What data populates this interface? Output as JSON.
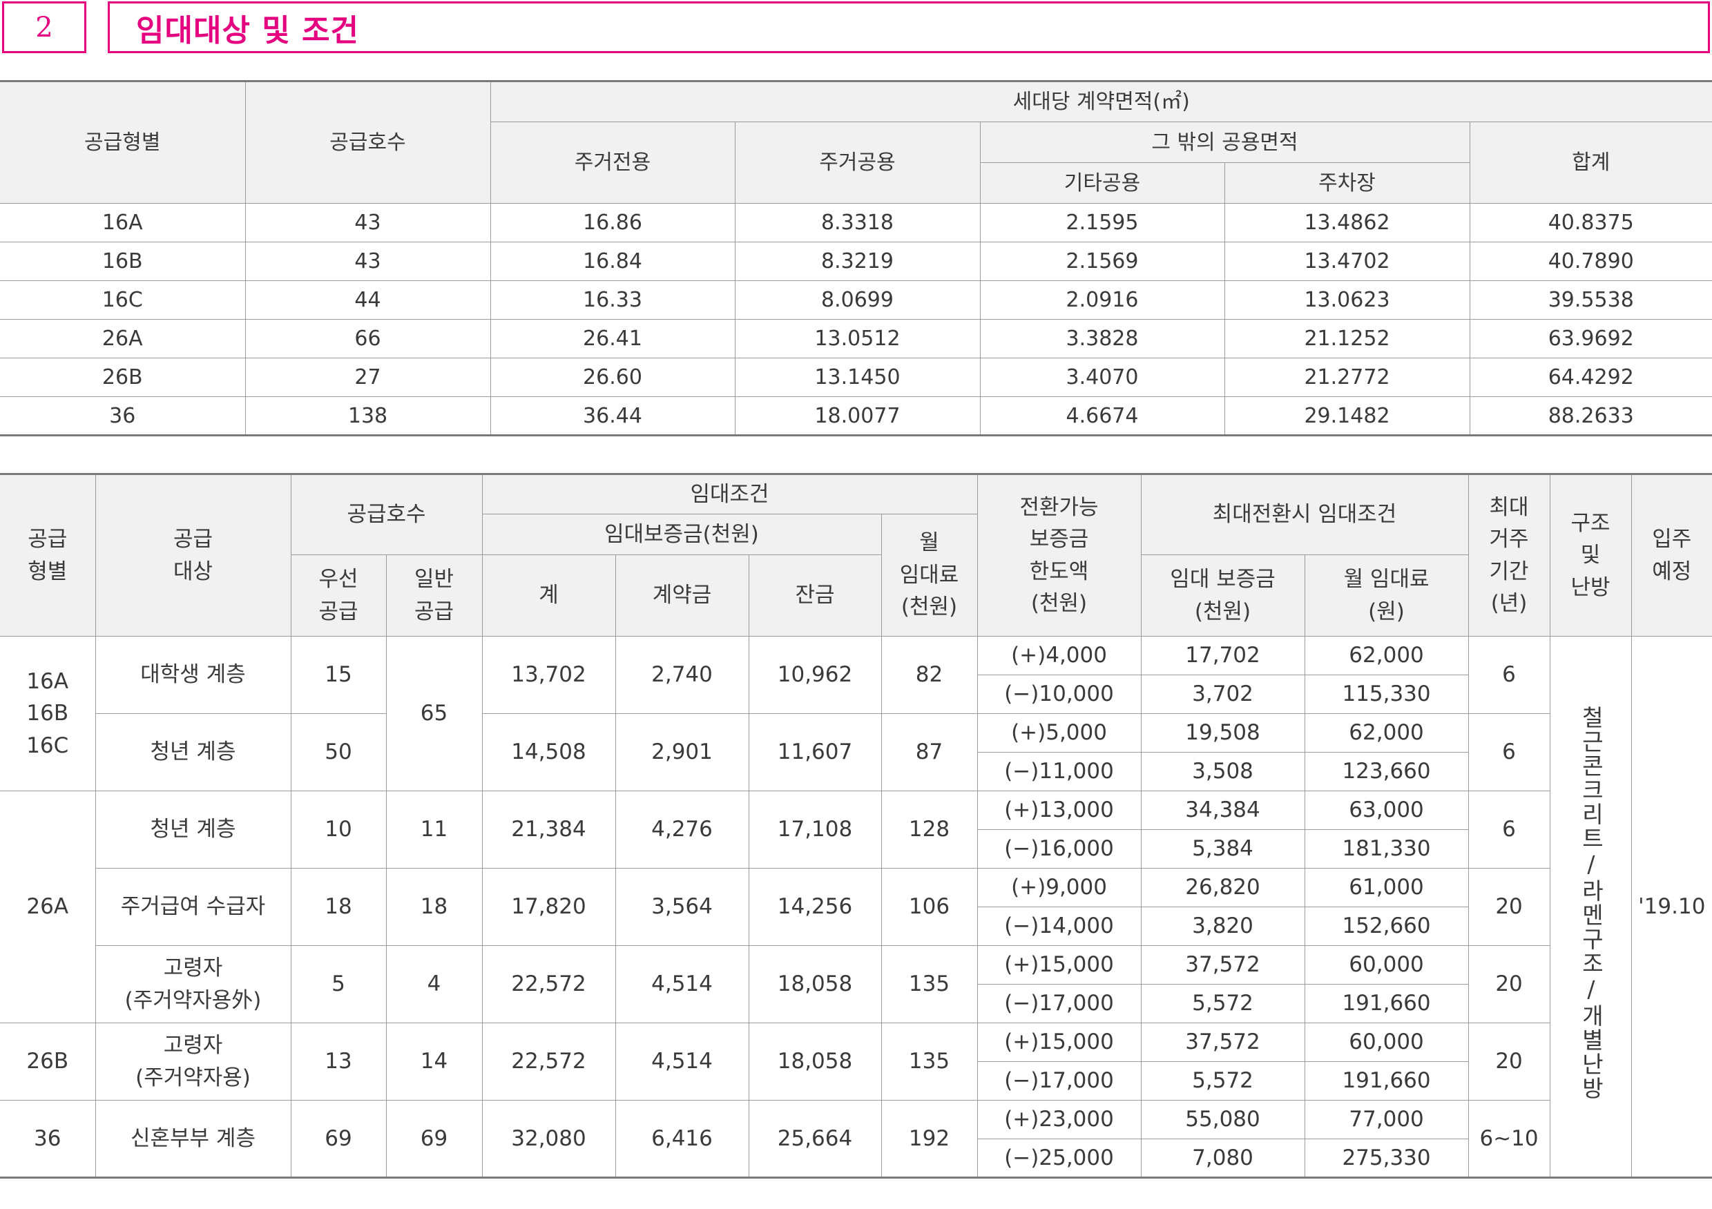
{
  "section": {
    "number": "2",
    "title": "임대대상 및 조건"
  },
  "area_table": {
    "headers": {
      "supply_type": "공급형별",
      "supply_units": "공급호수",
      "contract_area": "세대당 계약면적(㎡)",
      "residential_exclusive": "주거전용",
      "residential_common": "주거공용",
      "other_common_area": "그 밖의 공용면적",
      "other_common": "기타공용",
      "parking": "주차장",
      "total": "합계"
    },
    "rows": [
      [
        "16A",
        "43",
        "16.86",
        "8.3318",
        "2.1595",
        "13.4862",
        "40.8375"
      ],
      [
        "16B",
        "43",
        "16.84",
        "8.3219",
        "2.1569",
        "13.4702",
        "40.7890"
      ],
      [
        "16C",
        "44",
        "16.33",
        "8.0699",
        "2.0916",
        "13.0623",
        "39.5538"
      ],
      [
        "26A",
        "66",
        "26.41",
        "13.0512",
        "3.3828",
        "21.1252",
        "63.9692"
      ],
      [
        "26B",
        "27",
        "26.60",
        "13.1450",
        "3.4070",
        "21.2772",
        "64.4292"
      ],
      [
        "36",
        "138",
        "36.44",
        "18.0077",
        "4.6674",
        "29.1482",
        "88.2633"
      ]
    ]
  },
  "lease_table": {
    "headers": {
      "supply_type": [
        "공급",
        "형별"
      ],
      "supply_target": [
        "공급",
        "대상"
      ],
      "supply_units": "공급호수",
      "priority": [
        "우선",
        "공급"
      ],
      "general": [
        "일반",
        "공급"
      ],
      "lease_conditions": "임대조건",
      "deposit": "임대보증금(천원)",
      "deposit_total": "계",
      "down_payment": "계약금",
      "balance": "잔금",
      "monthly_rent": [
        "월",
        "임대료",
        "(천원)"
      ],
      "convertible_limit": [
        "전환가능",
        "보증금",
        "한도액",
        "(천원)"
      ],
      "max_conversion": "최대전환시 임대조건",
      "conv_deposit": [
        "임대 보증금",
        "(천원)"
      ],
      "conv_rent": [
        "월 임대료",
        "(원)"
      ],
      "max_residence": [
        "최대",
        "거주",
        "기간",
        "(년)"
      ],
      "structure_heating": [
        "구조",
        "및",
        "난방"
      ],
      "move_in": [
        "입주",
        "예정"
      ]
    },
    "groups": [
      {
        "type": "16A\n16B\n16C",
        "type_lines": [
          "16A",
          "16B",
          "16C"
        ]
      },
      {
        "type_lines": [
          "26A"
        ]
      },
      {
        "type_lines": [
          "26B"
        ]
      },
      {
        "type_lines": [
          "36"
        ]
      }
    ],
    "rows": [
      {
        "target": [
          "대학생 계층"
        ],
        "priority": "15",
        "total": "13,702",
        "down": "2,740",
        "balance": "10,962",
        "rent": "82",
        "period": "6",
        "conv": [
          [
            "(+)4,000",
            "17,702",
            "62,000"
          ],
          [
            "(−)10,000",
            "3,702",
            "115,330"
          ]
        ]
      },
      {
        "target": [
          "청년 계층"
        ],
        "priority": "50",
        "total": "14,508",
        "down": "2,901",
        "balance": "11,607",
        "rent": "87",
        "period": "6",
        "conv": [
          [
            "(+)5,000",
            "19,508",
            "62,000"
          ],
          [
            "(−)11,000",
            "3,508",
            "123,660"
          ]
        ]
      },
      {
        "target": [
          "청년 계층"
        ],
        "priority": "10",
        "general": "11",
        "total": "21,384",
        "down": "4,276",
        "balance": "17,108",
        "rent": "128",
        "period": "6",
        "conv": [
          [
            "(+)13,000",
            "34,384",
            "63,000"
          ],
          [
            "(−)16,000",
            "5,384",
            "181,330"
          ]
        ]
      },
      {
        "target": [
          "주거급여 수급자"
        ],
        "priority": "18",
        "general": "18",
        "total": "17,820",
        "down": "3,564",
        "balance": "14,256",
        "rent": "106",
        "period": "20",
        "conv": [
          [
            "(+)9,000",
            "26,820",
            "61,000"
          ],
          [
            "(−)14,000",
            "3,820",
            "152,660"
          ]
        ]
      },
      {
        "target": [
          "고령자",
          "(주거약자용外)"
        ],
        "priority": "5",
        "general": "4",
        "total": "22,572",
        "down": "4,514",
        "balance": "18,058",
        "rent": "135",
        "period": "20",
        "conv": [
          [
            "(+)15,000",
            "37,572",
            "60,000"
          ],
          [
            "(−)17,000",
            "5,572",
            "191,660"
          ]
        ]
      },
      {
        "target": [
          "고령자",
          "(주거약자용)"
        ],
        "priority": "13",
        "general": "14",
        "total": "22,572",
        "down": "4,514",
        "balance": "18,058",
        "rent": "135",
        "period": "20",
        "conv": [
          [
            "(+)15,000",
            "37,572",
            "60,000"
          ],
          [
            "(−)17,000",
            "5,572",
            "191,660"
          ]
        ]
      },
      {
        "target": [
          "신혼부부 계층"
        ],
        "priority": "69",
        "general": "69",
        "total": "32,080",
        "down": "6,416",
        "balance": "25,664",
        "rent": "192",
        "period": "6~10",
        "conv": [
          [
            "(+)23,000",
            "55,080",
            "77,000"
          ],
          [
            "(−)25,000",
            "7,080",
            "275,330"
          ]
        ]
      }
    ],
    "general_16": "65",
    "structure": "철근콘크리트/라멘구조/개별난방",
    "move_in_date": "'19.10"
  }
}
